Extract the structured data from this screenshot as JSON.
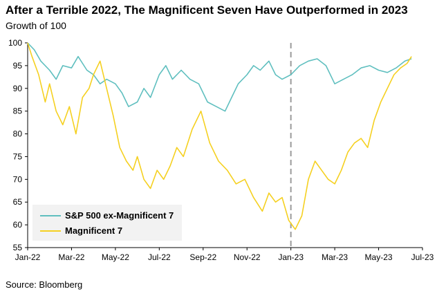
{
  "chart_data": {
    "type": "line",
    "title": "After a Terrible 2022, The Magnificent Seven Have Outperformed in 2023",
    "subtitle": "Growth of 100",
    "source": "Source: Bloomberg",
    "ylim": [
      55,
      100
    ],
    "yticks": [
      "100",
      "95",
      "90",
      "85",
      "80",
      "75",
      "70",
      "65",
      "60",
      "55"
    ],
    "xlim": [
      0,
      18
    ],
    "xtick_labels": [
      "Jan-22",
      "Mar-22",
      "May-22",
      "Jul-22",
      "Sep-22",
      "Nov-22",
      "Jan-23",
      "Mar-23",
      "May-23",
      "Jul-23"
    ],
    "divider_x": 12,
    "series": [
      {
        "name": "S&P 500 ex-Magnificent 7",
        "color": "#5fbfbf",
        "x": [
          0,
          0.3,
          0.6,
          1.0,
          1.3,
          1.6,
          2.0,
          2.3,
          2.7,
          3.0,
          3.3,
          3.6,
          4.0,
          4.3,
          4.6,
          5.0,
          5.3,
          5.6,
          6.0,
          6.3,
          6.6,
          7.0,
          7.4,
          7.8,
          8.2,
          8.6,
          9.0,
          9.3,
          9.6,
          10.0,
          10.3,
          10.6,
          11.0,
          11.3,
          11.6,
          12.0,
          12.4,
          12.8,
          13.2,
          13.6,
          14.0,
          14.4,
          14.8,
          15.2,
          15.6,
          16.0,
          16.4,
          16.8,
          17.2,
          17.5
        ],
        "values": [
          100,
          98.5,
          96,
          94,
          92,
          95,
          94.5,
          97,
          94,
          93,
          91,
          92,
          91,
          89,
          86,
          87,
          90,
          88,
          93,
          95,
          92,
          94,
          92,
          91,
          87,
          86,
          85,
          88,
          91,
          93,
          95,
          94,
          96,
          93,
          92,
          93,
          95,
          96,
          96.5,
          95,
          91,
          92,
          93,
          94.5,
          95,
          94,
          93.5,
          94.5,
          96,
          96.5
        ]
      },
      {
        "name": "Magnificent 7",
        "color": "#f5d020",
        "x": [
          0,
          0.2,
          0.5,
          0.8,
          1.0,
          1.3,
          1.6,
          1.9,
          2.2,
          2.5,
          2.8,
          3.0,
          3.3,
          3.6,
          3.9,
          4.2,
          4.5,
          4.8,
          5.0,
          5.3,
          5.6,
          5.9,
          6.2,
          6.5,
          6.8,
          7.1,
          7.5,
          7.9,
          8.3,
          8.7,
          9.1,
          9.5,
          9.9,
          10.3,
          10.7,
          11.0,
          11.3,
          11.6,
          11.9,
          12.2,
          12.5,
          12.8,
          13.1,
          13.4,
          13.7,
          14.0,
          14.3,
          14.6,
          14.9,
          15.2,
          15.5,
          15.8,
          16.1,
          16.4,
          16.7,
          17.0,
          17.3,
          17.5
        ],
        "values": [
          100,
          97,
          93,
          87,
          91,
          85,
          82,
          86,
          80,
          88,
          90,
          93,
          96,
          90,
          84,
          77,
          74,
          72,
          75,
          70,
          68,
          72,
          70,
          73,
          77,
          75,
          81,
          85,
          78,
          74,
          72,
          69,
          70,
          66,
          63,
          67,
          65,
          66,
          61,
          59,
          62,
          70,
          74,
          72,
          70,
          69,
          72,
          76,
          78,
          79,
          77,
          83,
          87,
          90,
          93,
          94.5,
          95.5,
          97
        ]
      }
    ]
  }
}
